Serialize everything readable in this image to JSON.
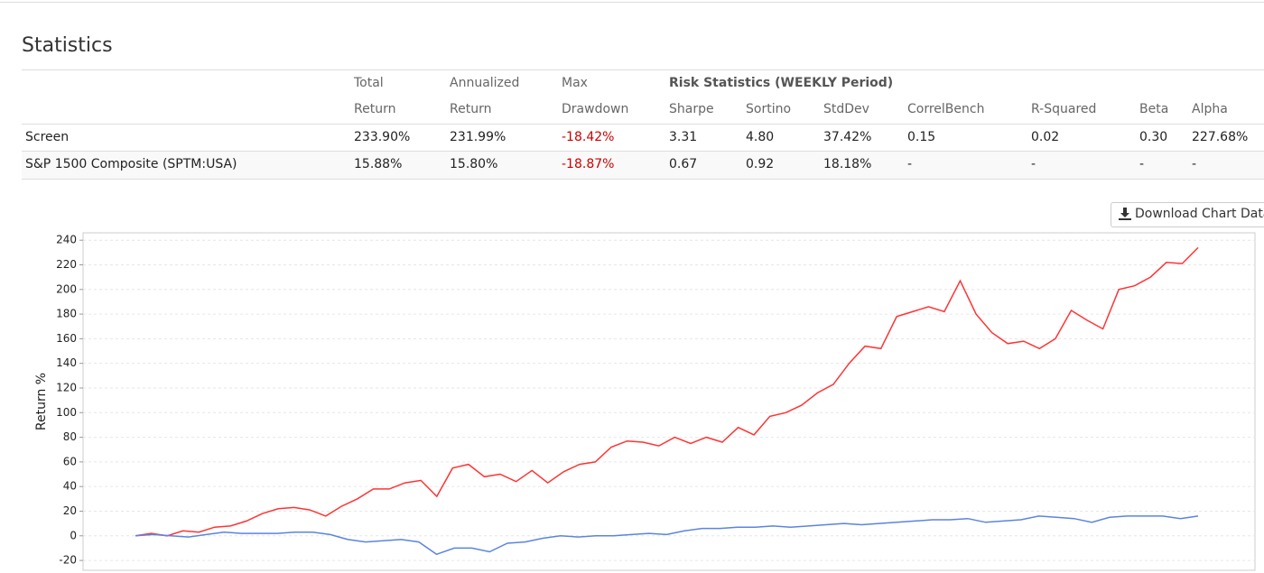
{
  "title": "Statistics",
  "table": {
    "header_top": [
      "Total",
      "Annualized",
      "Max",
      "Risk Statistics (WEEKLY Period)"
    ],
    "header_bottom": [
      "Return",
      "Return",
      "Drawdown",
      "Sharpe",
      "Sortino",
      "StdDev",
      "CorrelBench",
      "R-Squared",
      "Beta",
      "Alpha"
    ],
    "rows": [
      [
        "Screen",
        "233.90%",
        "231.99%",
        "-18.42%",
        "3.31",
        "4.80",
        "37.42%",
        "0.15",
        "0.02",
        "0.30",
        "227.68%"
      ],
      [
        "S&P 1500 Composite (SPTM:USA)",
        "15.88%",
        "15.80%",
        "-18.87%",
        "0.67",
        "0.92",
        "18.18%",
        "-",
        "-",
        "-",
        "-"
      ]
    ]
  },
  "download_button": "Download Chart Data",
  "chart_data": {
    "type": "line",
    "ylabel": "Return %",
    "ylim": [
      -28,
      246
    ],
    "yticks": [
      -20,
      0,
      20,
      40,
      60,
      80,
      100,
      120,
      140,
      160,
      180,
      200,
      220,
      240
    ],
    "grid": true,
    "series": [
      {
        "color": "#ff3333",
        "values": [
          0,
          2,
          0,
          4,
          3,
          7,
          8,
          12,
          18,
          22,
          23,
          21,
          16,
          24,
          30,
          38,
          38,
          43,
          45,
          32,
          55,
          58,
          48,
          50,
          44,
          53,
          43,
          52,
          58,
          60,
          72,
          77,
          76,
          73,
          80,
          75,
          80,
          76,
          88,
          82,
          97,
          100,
          106,
          116,
          123,
          140,
          154,
          152,
          178,
          182,
          186,
          182,
          207,
          180,
          165,
          156,
          158,
          152,
          160,
          183,
          175,
          168,
          200,
          203,
          210,
          222,
          221,
          234
        ]
      },
      {
        "color": "#5b84e0",
        "values": [
          0,
          1,
          0,
          -1,
          1,
          3,
          2,
          2,
          2,
          3,
          3,
          1,
          -3,
          -5,
          -4,
          -3,
          -5,
          -15,
          -10,
          -10,
          -13,
          -6,
          -5,
          -2,
          0,
          -1,
          0,
          0,
          1,
          2,
          1,
          4,
          6,
          6,
          7,
          7,
          8,
          7,
          8,
          9,
          10,
          9,
          10,
          11,
          12,
          13,
          13,
          14,
          11,
          12,
          13,
          16,
          15,
          14,
          11,
          15,
          16,
          16,
          16,
          14,
          16
        ]
      }
    ]
  }
}
